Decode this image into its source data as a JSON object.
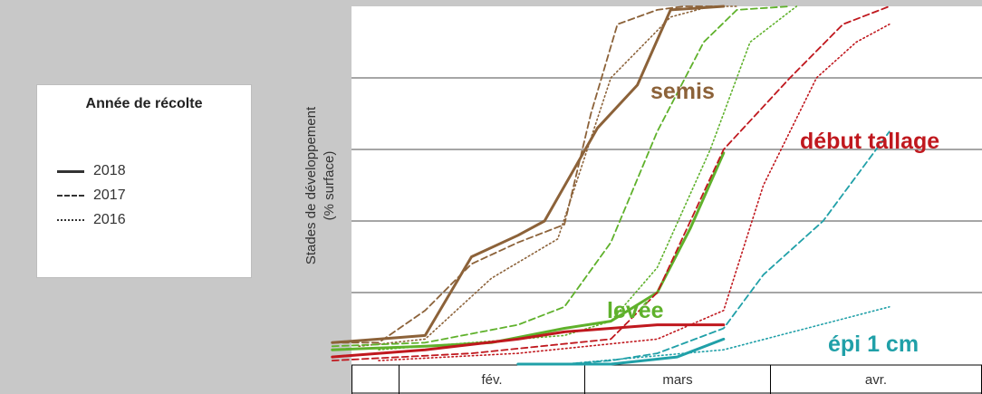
{
  "legend": {
    "title": "Année de récolte",
    "entries": [
      {
        "label": "2018",
        "style": "solid"
      },
      {
        "label": "2017",
        "style": "dashed"
      },
      {
        "label": "2016",
        "style": "dotted"
      }
    ]
  },
  "colors": {
    "semis": "#8c6239",
    "levee": "#5fb12b",
    "tallage": "#c0181e",
    "epi": "#20a0a8",
    "left_panel": "#c8c8c8",
    "grid": "#a6a6a6"
  },
  "chart_data": {
    "type": "line",
    "title": "",
    "xlabel": "",
    "ylabel": "Stades de développement (% surface)",
    "x_unit": "days since 1 January",
    "x_categories": [
      "",
      "fév.",
      "mars",
      "avr."
    ],
    "ylim": [
      0,
      100
    ],
    "grid": true,
    "legend_placement": "left",
    "series_labels": [
      {
        "text": "semis",
        "series_group": "semis"
      },
      {
        "text": "levée",
        "series_group": "levee"
      },
      {
        "text": "début tallage",
        "series_group": "tallage"
      },
      {
        "text": "épi 1 cm",
        "series_group": "epi"
      }
    ],
    "series": [
      {
        "group": "semis",
        "year": "2018",
        "style": "solid",
        "x": [
          21,
          28,
          35,
          42,
          49,
          53,
          61,
          67,
          72,
          80
        ],
        "y": [
          6,
          7,
          8,
          30,
          36,
          40,
          66,
          78,
          99,
          100
        ]
      },
      {
        "group": "semis",
        "year": "2017",
        "style": "dashed",
        "x": [
          21,
          28,
          35,
          42,
          49,
          56,
          60,
          64,
          70,
          74,
          80
        ],
        "y": [
          6,
          6,
          15,
          28,
          34,
          39,
          70,
          95,
          99,
          100,
          100
        ]
      },
      {
        "group": "semis",
        "year": "2016",
        "style": "dotted",
        "x": [
          25,
          35,
          45,
          55,
          63,
          72,
          78,
          82
        ],
        "y": [
          5,
          7,
          24,
          35,
          80,
          97,
          100,
          100
        ]
      },
      {
        "group": "levee",
        "year": "2018",
        "style": "solid",
        "x": [
          21,
          35,
          45,
          56,
          63,
          70,
          75,
          80
        ],
        "y": [
          4,
          5,
          6,
          10,
          12,
          20,
          38,
          59
        ]
      },
      {
        "group": "levee",
        "year": "2017",
        "style": "dashed",
        "x": [
          21,
          35,
          49,
          56,
          63,
          70,
          77,
          82,
          90
        ],
        "y": [
          5,
          6,
          11,
          16,
          34,
          65,
          90,
          99,
          100
        ]
      },
      {
        "group": "levee",
        "year": "2016",
        "style": "dotted",
        "x": [
          28,
          42,
          56,
          63,
          70,
          78,
          84,
          91
        ],
        "y": [
          4,
          6,
          8,
          12,
          27,
          60,
          90,
          100
        ]
      },
      {
        "group": "tallage",
        "year": "2018",
        "style": "solid",
        "x": [
          21,
          35,
          49,
          56,
          63,
          70,
          80
        ],
        "y": [
          2,
          4,
          7,
          9,
          10,
          11,
          11
        ]
      },
      {
        "group": "tallage",
        "year": "2017",
        "style": "dashed",
        "x": [
          21,
          42,
          63,
          70,
          80,
          90,
          98,
          105
        ],
        "y": [
          1,
          3,
          7,
          20,
          60,
          80,
          95,
          100
        ]
      },
      {
        "group": "tallage",
        "year": "2016",
        "style": "dotted",
        "x": [
          28,
          49,
          70,
          80,
          86,
          94,
          100,
          105
        ],
        "y": [
          1,
          3,
          7,
          15,
          50,
          80,
          90,
          95
        ]
      },
      {
        "group": "epi",
        "year": "2018",
        "style": "solid",
        "x": [
          49,
          63,
          73,
          80
        ],
        "y": [
          0,
          0,
          2,
          7
        ]
      },
      {
        "group": "epi",
        "year": "2017",
        "style": "dashed",
        "x": [
          56,
          63,
          70,
          80,
          86,
          95,
          105
        ],
        "y": [
          0,
          1,
          3,
          10,
          25,
          40,
          65
        ]
      },
      {
        "group": "epi",
        "year": "2016",
        "style": "dotted",
        "x": [
          56,
          80,
          105
        ],
        "y": [
          0,
          4,
          16
        ]
      }
    ]
  }
}
